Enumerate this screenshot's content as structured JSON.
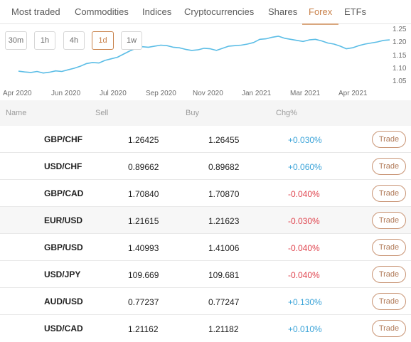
{
  "tabs": [
    {
      "label": "Most traded",
      "active": false
    },
    {
      "label": "Commodities",
      "active": false
    },
    {
      "label": "Indices",
      "active": false
    },
    {
      "label": "Cryptocurrencies",
      "active": false
    },
    {
      "label": "Shares",
      "active": false
    },
    {
      "label": "Forex",
      "active": true
    },
    {
      "label": "ETFs",
      "active": false
    }
  ],
  "range_buttons": [
    {
      "label": "30m",
      "active": false
    },
    {
      "label": "1h",
      "active": false
    },
    {
      "label": "4h",
      "active": false
    },
    {
      "label": "1d",
      "active": true
    },
    {
      "label": "1w",
      "active": false
    }
  ],
  "chart_data": {
    "type": "line",
    "title": "",
    "xlabel": "",
    "ylabel": "",
    "x_ticks": [
      "Apr 2020",
      "Jun 2020",
      "Jul 2020",
      "Sep 2020",
      "Nov 2020",
      "Jan 2021",
      "Mar 2021",
      "Apr 2021"
    ],
    "y_ticks": [
      "1.25",
      "1.20",
      "1.15",
      "1.10",
      "1.05"
    ],
    "ylim": [
      1.05,
      1.25
    ],
    "grid": false,
    "line_color": "#5bbde6",
    "series": [
      {
        "x": [
          "2020-03-20",
          "2020-03-27",
          "2020-04-03",
          "2020-04-10",
          "2020-04-17",
          "2020-04-24",
          "2020-05-01",
          "2020-05-08",
          "2020-05-15",
          "2020-05-22",
          "2020-05-29",
          "2020-06-05",
          "2020-06-12",
          "2020-06-19",
          "2020-06-26",
          "2020-07-03",
          "2020-07-10",
          "2020-07-17",
          "2020-07-24",
          "2020-07-31",
          "2020-08-07",
          "2020-08-14",
          "2020-08-21",
          "2020-08-28",
          "2020-09-04",
          "2020-09-11",
          "2020-09-18",
          "2020-09-25",
          "2020-10-02",
          "2020-10-09",
          "2020-10-16",
          "2020-10-23",
          "2020-10-30",
          "2020-11-06",
          "2020-11-13",
          "2020-11-20",
          "2020-11-27",
          "2020-12-04",
          "2020-12-11",
          "2020-12-18",
          "2020-12-25",
          "2021-01-01",
          "2021-01-08",
          "2021-01-15",
          "2021-01-22",
          "2021-01-29",
          "2021-02-05",
          "2021-02-12",
          "2021-02-19",
          "2021-02-26",
          "2021-03-05",
          "2021-03-12",
          "2021-03-19",
          "2021-03-26",
          "2021-04-02",
          "2021-04-09",
          "2021-04-16",
          "2021-04-23",
          "2021-04-30",
          "2021-05-07",
          "2021-05-14"
        ],
        "values": [
          1.093,
          1.09,
          1.088,
          1.092,
          1.086,
          1.089,
          1.094,
          1.092,
          1.098,
          1.104,
          1.112,
          1.122,
          1.126,
          1.124,
          1.134,
          1.14,
          1.146,
          1.158,
          1.17,
          1.18,
          1.186,
          1.184,
          1.188,
          1.192,
          1.19,
          1.184,
          1.182,
          1.176,
          1.172,
          1.174,
          1.18,
          1.178,
          1.172,
          1.18,
          1.188,
          1.19,
          1.192,
          1.196,
          1.202,
          1.214,
          1.216,
          1.222,
          1.226,
          1.218,
          1.214,
          1.21,
          1.206,
          1.212,
          1.214,
          1.208,
          1.2,
          1.196,
          1.188,
          1.178,
          1.182,
          1.19,
          1.196,
          1.2,
          1.204,
          1.21,
          1.212
        ]
      }
    ]
  },
  "table": {
    "headers": {
      "name": "Name",
      "sell": "Sell",
      "buy": "Buy",
      "chg": "Chg%"
    },
    "trade_label": "Trade",
    "rows": [
      {
        "name": "GBP/CHF",
        "sell": "1.26425",
        "buy": "1.26455",
        "chg": "+0.030%",
        "dir": "pos"
      },
      {
        "name": "USD/CHF",
        "sell": "0.89662",
        "buy": "0.89682",
        "chg": "+0.060%",
        "dir": "pos"
      },
      {
        "name": "GBP/CAD",
        "sell": "1.70840",
        "buy": "1.70870",
        "chg": "-0.040%",
        "dir": "neg"
      },
      {
        "name": "EUR/USD",
        "sell": "1.21615",
        "buy": "1.21623",
        "chg": "-0.030%",
        "dir": "neg"
      },
      {
        "name": "GBP/USD",
        "sell": "1.40993",
        "buy": "1.41006",
        "chg": "-0.040%",
        "dir": "neg"
      },
      {
        "name": "USD/JPY",
        "sell": "109.669",
        "buy": "109.681",
        "chg": "-0.040%",
        "dir": "neg"
      },
      {
        "name": "AUD/USD",
        "sell": "0.77237",
        "buy": "0.77247",
        "chg": "+0.130%",
        "dir": "pos"
      },
      {
        "name": "USD/CAD",
        "sell": "1.21162",
        "buy": "1.21182",
        "chg": "+0.010%",
        "dir": "pos"
      }
    ]
  }
}
